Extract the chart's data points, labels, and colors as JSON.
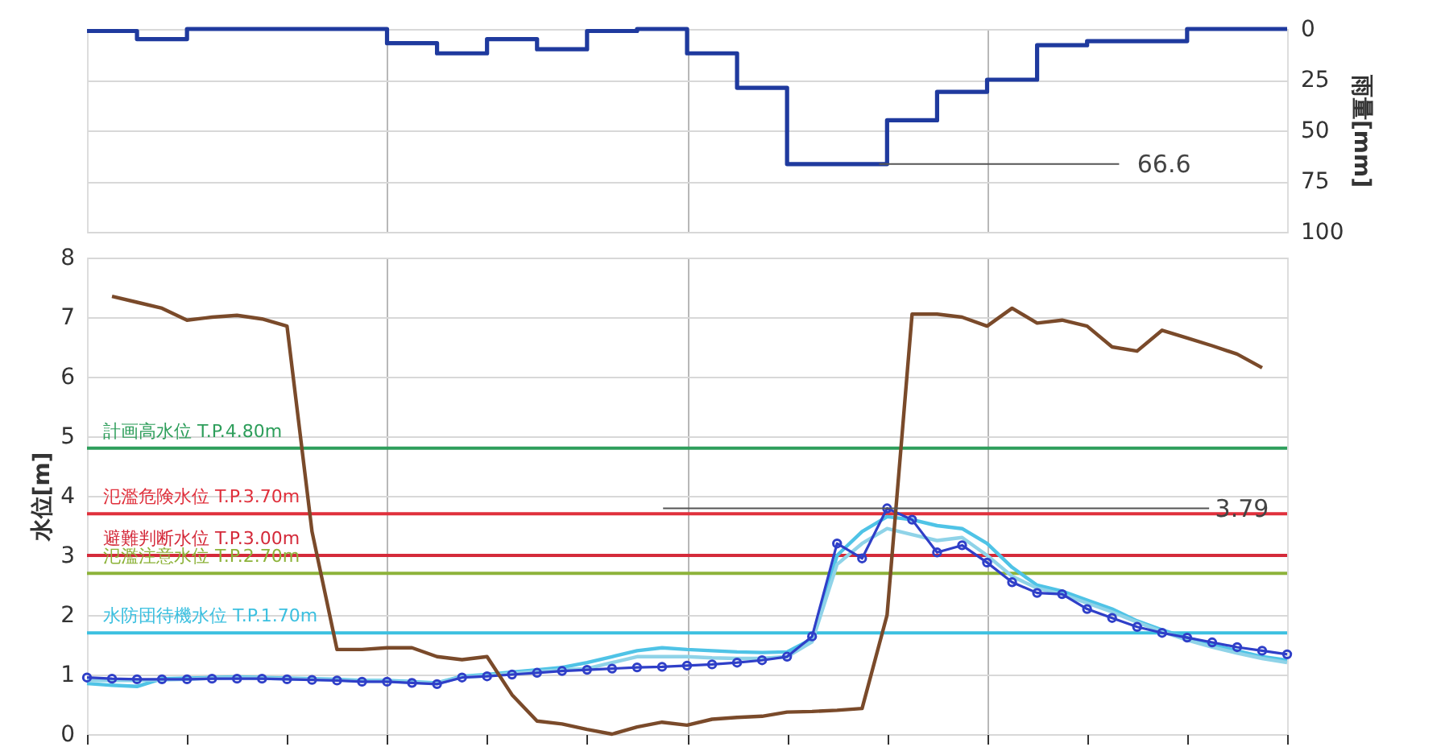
{
  "chart_data": [
    {
      "type": "step",
      "categories": [
        null,
        null,
        null,
        null,
        null,
        null,
        null,
        null,
        null,
        null,
        null,
        null,
        null,
        null,
        null,
        null,
        null,
        null,
        null,
        null,
        null,
        null,
        null,
        null,
        null
      ],
      "series": [
        {
          "color": "#1f3a9e",
          "values": [
            1,
            5,
            0,
            0,
            0,
            0,
            7,
            12,
            5,
            10,
            1,
            0,
            12,
            29,
            66.6,
            66.6,
            45,
            31,
            25,
            8,
            6,
            6,
            0,
            0,
            0
          ]
        }
      ],
      "ylabel": "雨量[mm]",
      "ylim": [
        100,
        0
      ],
      "yticks": [
        0,
        25,
        50,
        75,
        100
      ],
      "grid": true,
      "tick_labels": "y",
      "annotations": [
        "66.6"
      ]
    },
    {
      "type": "line",
      "categories": [
        null,
        null,
        null,
        null,
        null,
        null,
        null,
        null,
        null,
        null,
        null,
        null,
        null,
        null,
        null,
        null,
        null,
        null,
        null,
        null,
        null,
        null,
        null,
        null,
        null,
        null,
        null,
        null,
        null,
        null,
        null,
        null,
        null,
        null,
        null,
        null,
        null,
        null,
        null,
        null,
        null,
        null,
        null,
        null,
        null,
        null,
        null,
        null,
        null
      ],
      "series": [
        {
          "color": "#4fc3e6",
          "values": [
            0.85,
            0.82,
            0.8,
            0.93,
            0.94,
            0.95,
            0.96,
            0.95,
            0.94,
            0.93,
            0.92,
            0.9,
            0.9,
            0.88,
            0.86,
            0.97,
            1.0,
            1.04,
            1.08,
            1.12,
            1.2,
            1.3,
            1.4,
            1.45,
            1.42,
            1.4,
            1.38,
            1.37,
            1.38,
            1.6,
            3.0,
            3.4,
            3.65,
            3.6,
            3.5,
            3.45,
            3.2,
            2.8,
            2.5,
            2.4,
            2.25,
            2.1,
            1.9,
            1.75,
            1.62,
            1.5,
            1.4,
            1.3,
            1.24
          ]
        },
        {
          "color": "#8fd3e8",
          "values": [
            0.9,
            0.9,
            0.9,
            0.91,
            0.92,
            0.94,
            0.95,
            0.94,
            0.93,
            0.92,
            0.91,
            0.89,
            0.89,
            0.87,
            0.85,
            0.96,
            0.98,
            1.02,
            1.05,
            1.08,
            1.1,
            1.2,
            1.3,
            1.3,
            1.3,
            1.28,
            1.27,
            1.27,
            1.3,
            1.55,
            2.85,
            3.2,
            3.45,
            3.35,
            3.25,
            3.3,
            3.0,
            2.65,
            2.45,
            2.35,
            2.2,
            2.05,
            1.88,
            1.72,
            1.58,
            1.46,
            1.36,
            1.27,
            1.2
          ]
        },
        {
          "color": "#2f3fc8",
          "marker": "circle",
          "values": [
            0.95,
            0.93,
            0.92,
            0.92,
            0.92,
            0.93,
            0.93,
            0.93,
            0.92,
            0.91,
            0.9,
            0.88,
            0.88,
            0.86,
            0.84,
            0.95,
            0.97,
            1.0,
            1.03,
            1.06,
            1.08,
            1.1,
            1.12,
            1.13,
            1.15,
            1.17,
            1.2,
            1.24,
            1.3,
            1.64,
            3.2,
            2.95,
            3.79,
            3.6,
            3.05,
            3.17,
            2.88,
            2.55,
            2.37,
            2.35,
            2.1,
            1.95,
            1.8,
            1.7,
            1.62,
            1.54,
            1.46,
            1.4,
            1.34
          ]
        },
        {
          "color": "#7a4a2a",
          "values": [
            null,
            7.35,
            7.25,
            7.15,
            6.95,
            7.0,
            7.03,
            6.97,
            6.85,
            3.4,
            1.42,
            1.42,
            1.45,
            1.45,
            1.3,
            1.25,
            1.3,
            0.66,
            0.22,
            0.17,
            0.08,
            0.0,
            0.12,
            0.2,
            0.15,
            0.25,
            0.28,
            0.3,
            0.37,
            0.38,
            0.4,
            0.43,
            2.0,
            7.05,
            7.05,
            7.0,
            6.85,
            7.15,
            6.9,
            6.95,
            6.85,
            6.5,
            6.43,
            6.78,
            6.65,
            6.52,
            6.38,
            6.15,
            null
          ]
        }
      ],
      "ylabel": "水位[m]",
      "ylim": [
        0,
        8
      ],
      "yticks": [
        0,
        1,
        2,
        3,
        4,
        5,
        6,
        7,
        8
      ],
      "grid": true,
      "tick_labels": "y",
      "ref_lines": [
        {
          "axis": "y",
          "value": 4.8,
          "label": "計画高水位 T.P.4.80m",
          "color": "#2e9e5b"
        },
        {
          "axis": "y",
          "value": 3.7,
          "label": "氾濫危険水位 T.P.3.70m",
          "color": "#e0303c"
        },
        {
          "axis": "y",
          "value": 3.0,
          "label": "避難判断水位 T.P.3.00m",
          "color": "#d42a3a"
        },
        {
          "axis": "y",
          "value": 2.7,
          "label": "氾濫注意水位 T.P.2.70m",
          "color": "#8db33a"
        },
        {
          "axis": "y",
          "value": 1.7,
          "label": "水防団待機水位 T.P.1.70m",
          "color": "#3cc0e0"
        }
      ],
      "annotations": [
        {
          "text": "3.79",
          "y": 3.79
        }
      ]
    }
  ]
}
